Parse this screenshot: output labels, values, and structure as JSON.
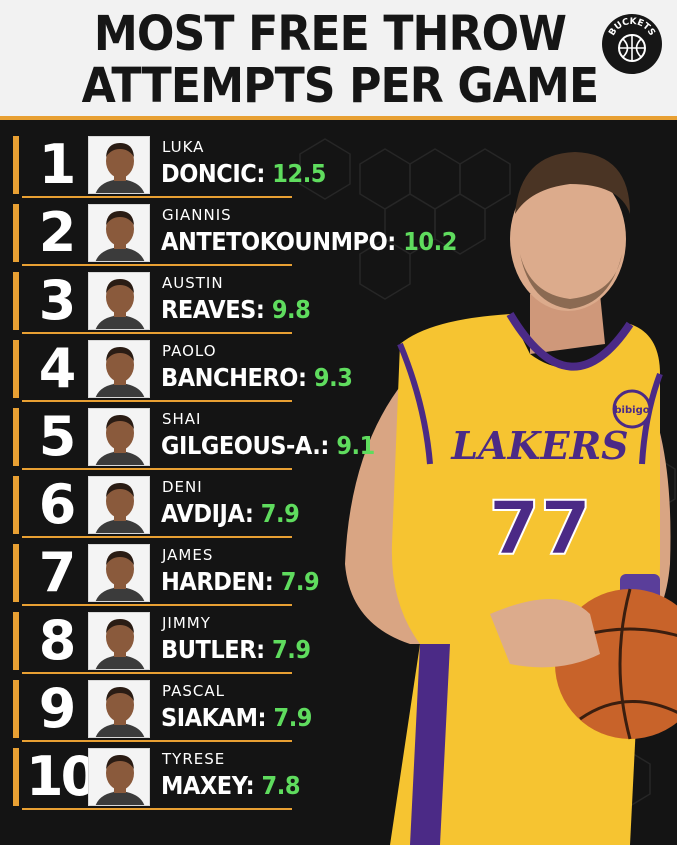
{
  "header": {
    "title_line1": "MOST FREE THROW",
    "title_line2": "ATTEMPTS PER GAME",
    "logo_text": "BUCKETS"
  },
  "players": [
    {
      "rank": "1",
      "first": "LUKA",
      "last": "DONCIC:",
      "value": "12.5"
    },
    {
      "rank": "2",
      "first": "GIANNIS",
      "last": "ANTETOKOUNMPO:",
      "value": "10.2"
    },
    {
      "rank": "3",
      "first": "AUSTIN",
      "last": "REAVES:",
      "value": "9.8"
    },
    {
      "rank": "4",
      "first": "PAOLO",
      "last": "BANCHERO:",
      "value": "9.3"
    },
    {
      "rank": "5",
      "first": "SHAI",
      "last": "GILGEOUS-A.:",
      "value": "9.1"
    },
    {
      "rank": "6",
      "first": "DENI",
      "last": "AVDIJA:",
      "value": "7.9"
    },
    {
      "rank": "7",
      "first": "JAMES",
      "last": "HARDEN:",
      "value": "7.9"
    },
    {
      "rank": "8",
      "first": "JIMMY",
      "last": "BUTLER:",
      "value": "7.9"
    },
    {
      "rank": "9",
      "first": "PASCAL",
      "last": "SIAKAM:",
      "value": "7.9"
    },
    {
      "rank": "10",
      "first": "TYRESE",
      "last": "MAXEY:",
      "value": "7.8"
    }
  ],
  "jersey": {
    "team": "LAKERS",
    "number": "77",
    "patch": "bibigo"
  },
  "colors": {
    "accent": "#e8a033",
    "value_green": "#5fdc5e",
    "background": "#141414",
    "header_bg": "#f2f2f2",
    "jersey_gold": "#f6c431",
    "jersey_purple": "#4b2a86"
  }
}
